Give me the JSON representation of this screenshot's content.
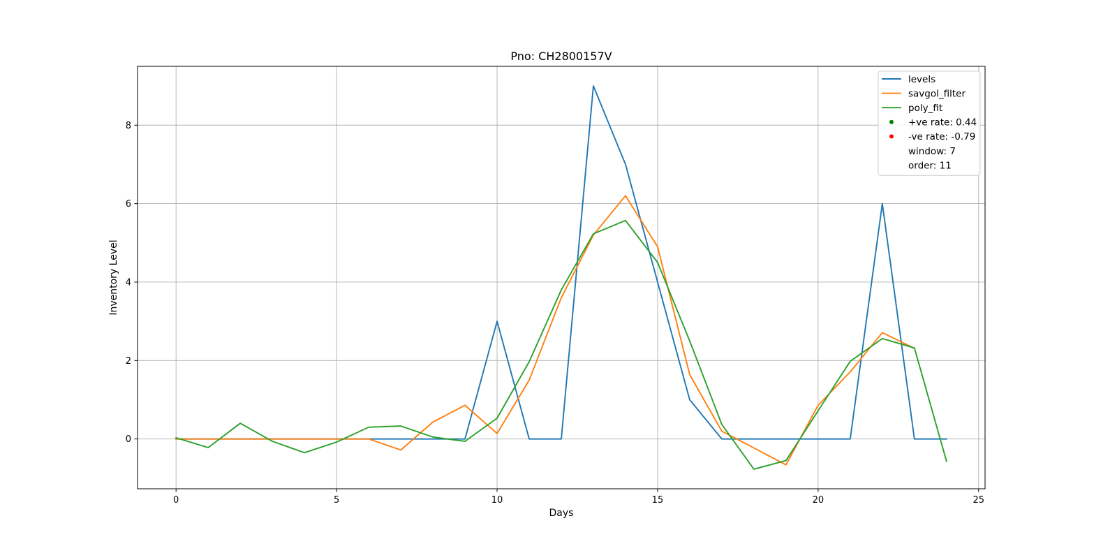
{
  "chart_data": {
    "type": "line",
    "title": "Pno: CH2800157V",
    "xlabel": "Days",
    "ylabel": "Inventory Level",
    "xlim": [
      -1.2,
      25.2
    ],
    "ylim": [
      -1.27,
      9.5
    ],
    "xticks": [
      0,
      5,
      10,
      15,
      20,
      25
    ],
    "yticks": [
      0,
      2,
      4,
      6,
      8
    ],
    "xtick_labels": [
      "0",
      "5",
      "10",
      "15",
      "20",
      "25"
    ],
    "ytick_labels": [
      "0",
      "2",
      "4",
      "6",
      "8"
    ],
    "grid": true,
    "legend_position": "top-right",
    "x": [
      0,
      1,
      2,
      3,
      4,
      5,
      6,
      7,
      8,
      9,
      10,
      11,
      12,
      13,
      14,
      15,
      16,
      17,
      18,
      19,
      20,
      21,
      22,
      23,
      24
    ],
    "series": [
      {
        "name": "levels",
        "color": "#1f77b4",
        "values": [
          0,
          0,
          0,
          0,
          0,
          0,
          0,
          0,
          0,
          0,
          3,
          0,
          0,
          9,
          7,
          4,
          1,
          0,
          0,
          0,
          0,
          0,
          6,
          0,
          0
        ]
      },
      {
        "name": "savgol_filter",
        "color": "#ff7f0e",
        "values": [
          0,
          0,
          0,
          0,
          0,
          0,
          0,
          -0.28,
          0.43,
          0.86,
          0.14,
          1.5,
          3.6,
          5.2,
          6.2,
          4.9,
          1.64,
          0.2,
          -0.23,
          -0.66,
          0.86,
          1.71,
          2.71,
          2.31,
          null
        ]
      },
      {
        "name": "poly_fit",
        "color": "#2ca02c",
        "values": [
          0.03,
          -0.22,
          0.4,
          -0.06,
          -0.35,
          -0.08,
          0.3,
          0.33,
          0.05,
          -0.06,
          0.53,
          1.97,
          3.8,
          5.23,
          5.57,
          4.5,
          2.5,
          0.37,
          -0.77,
          -0.55,
          0.72,
          1.98,
          2.56,
          2.32,
          -0.57
        ]
      }
    ],
    "legend": {
      "entries": [
        {
          "label": "levels",
          "kind": "line",
          "color": "#1f77b4"
        },
        {
          "label": "savgol_filter",
          "kind": "line",
          "color": "#ff7f0e"
        },
        {
          "label": "poly_fit",
          "kind": "line",
          "color": "#2ca02c"
        },
        {
          "label": "+ve rate: 0.44",
          "kind": "dot",
          "color": "#008000"
        },
        {
          "label": "-ve rate: -0.79",
          "kind": "dot",
          "color": "#ff0000"
        },
        {
          "label": "window: 7",
          "kind": "none",
          "color": ""
        },
        {
          "label": "order: 11",
          "kind": "none",
          "color": ""
        }
      ]
    }
  }
}
